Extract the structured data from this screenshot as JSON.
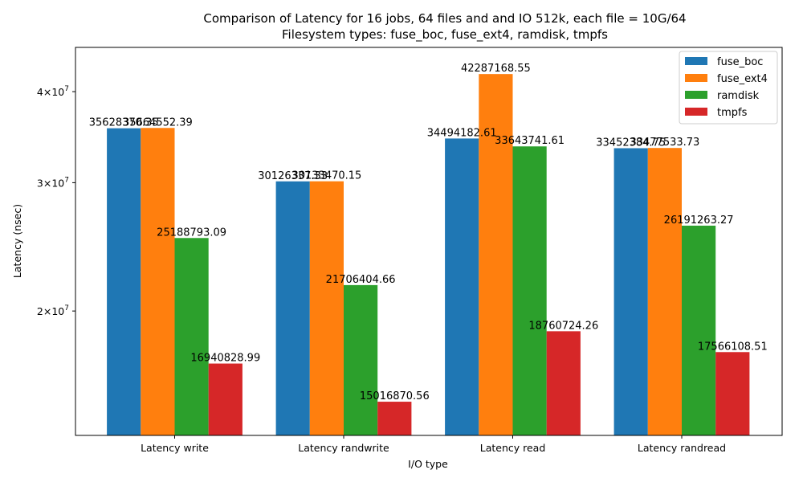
{
  "chart_data": {
    "type": "bar",
    "title_line1": "Comparison of Latency for 16 jobs, 64 files and  and IO 512k, each file = 10G/64",
    "title_line2": "Filesystem types: fuse_boc, fuse_ext4, ramdisk, tmpfs",
    "xlabel": "I/O type",
    "ylabel": "Latency (nsec)",
    "yscale": "log",
    "ylim": [
      13500000,
      46000000
    ],
    "yticks": [
      {
        "value": 20000000,
        "base": "2",
        "mant": "×10",
        "exp": "7"
      },
      {
        "value": 30000000,
        "base": "3",
        "mant": "×10",
        "exp": "7"
      },
      {
        "value": 40000000,
        "base": "4",
        "mant": "×10",
        "exp": "7"
      }
    ],
    "categories": [
      "Latency write",
      "Latency randwrite",
      "Latency read",
      "Latency randread"
    ],
    "series": [
      {
        "name": "fuse_boc",
        "color": "#1f77b4",
        "values": [
          35628370.35,
          30126337.33,
          34494182.61,
          33452384.75
        ],
        "labels": [
          "35628370.35",
          "30126337.33",
          "34494182.61",
          "33452384.75"
        ]
      },
      {
        "name": "fuse_ext4",
        "color": "#ff7f0e",
        "values": [
          35664552.39,
          30133470.15,
          42287168.55,
          33477533.73
        ],
        "labels": [
          "35664552.39",
          "30133470.15",
          "42287168.55",
          "33477533.73"
        ]
      },
      {
        "name": "ramdisk",
        "color": "#2ca02c",
        "values": [
          25188793.09,
          21706404.66,
          33643741.61,
          26191263.27
        ],
        "labels": [
          "25188793.09",
          "21706404.66",
          "33643741.61",
          "26191263.27"
        ]
      },
      {
        "name": "tmpfs",
        "color": "#d62728",
        "values": [
          16940828.99,
          15016870.56,
          18760724.26,
          17566108.51
        ],
        "labels": [
          "16940828.99",
          "15016870.56",
          "18760724.26",
          "17566108.51"
        ]
      }
    ],
    "grid": false,
    "legend_position": "top-right"
  }
}
